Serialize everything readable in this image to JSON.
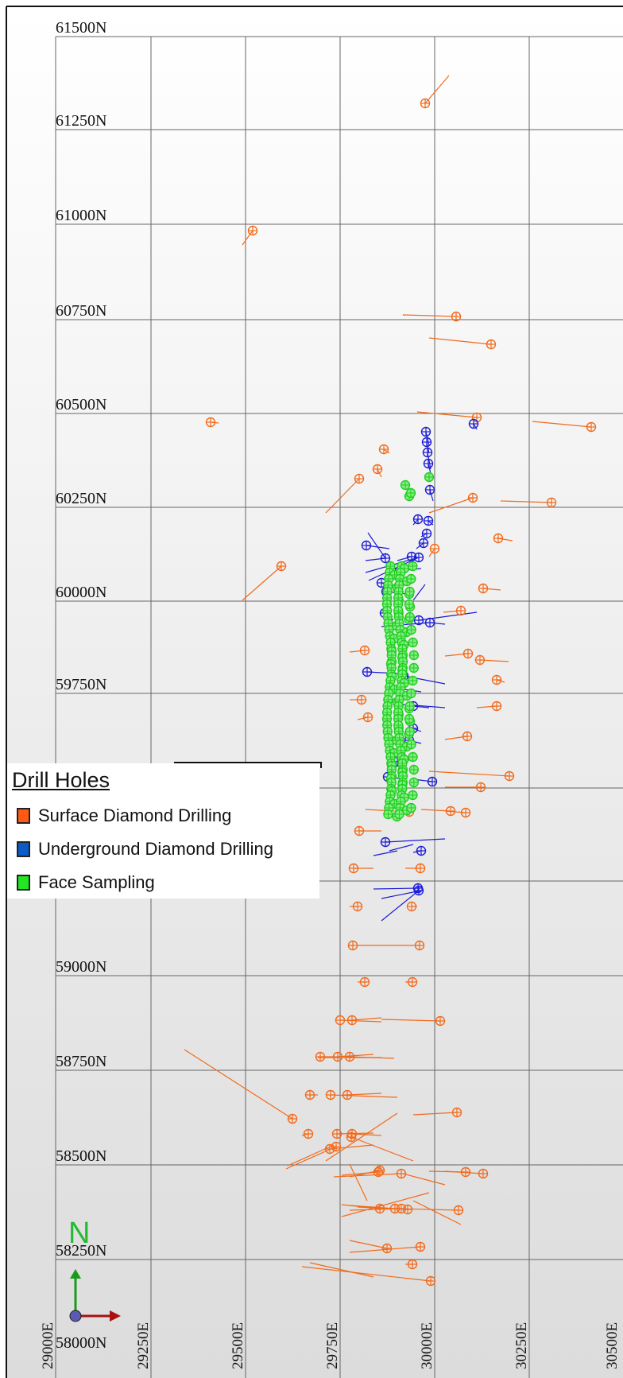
{
  "map": {
    "northing_labels": [
      "61500N",
      "61250N",
      "61000N",
      "60750N",
      "60500N",
      "60250N",
      "60000N",
      "59750N",
      "59000N",
      "58750N",
      "58500N",
      "58250N",
      "58000N"
    ],
    "easting_labels": [
      "29000E",
      "29250E",
      "29500E",
      "29750E",
      "30000E",
      "30250E",
      "30500E"
    ]
  },
  "legend": {
    "title": "Drill Holes",
    "items": [
      {
        "label": "Surface Diamond Drilling",
        "color": "#ff5a14"
      },
      {
        "label": "Underground Diamond Drilling",
        "color": "#0a5cc6"
      },
      {
        "label": "Face Sampling",
        "color": "#22e622"
      }
    ]
  },
  "north_arrow": {
    "label": "N"
  },
  "colors": {
    "surface": "#f26a1b",
    "underground": "#1c1cd6",
    "face": "#33dd33",
    "grid": "#555555"
  }
}
